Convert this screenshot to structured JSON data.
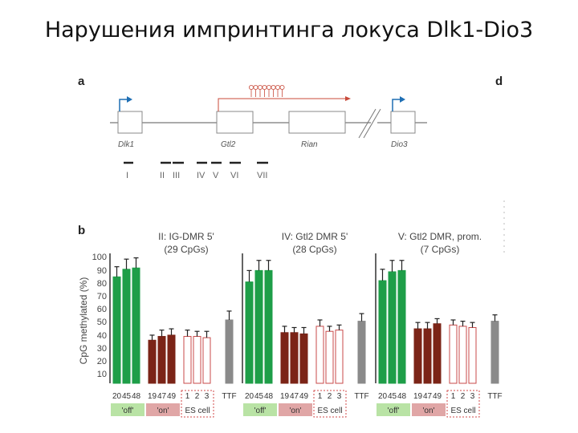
{
  "slide": {
    "title": "Нарушения импринтинга локуса Dlk1-Dio3"
  },
  "panel_a": {
    "letter": "a",
    "letter_d": "d",
    "genes": [
      "Dlk1",
      "Gtl2",
      "Rian",
      "Dio3"
    ],
    "regions": [
      "I",
      "II",
      "III",
      "IV",
      "V",
      "VI",
      "VII"
    ]
  },
  "panel_b": {
    "letter": "b",
    "ylabel": "CpG methylated (%)",
    "yticks": [
      "100",
      "90",
      "80",
      "70",
      "60",
      "50",
      "40",
      "30",
      "20",
      "10"
    ],
    "group_labels": [
      "'off'",
      "'on'",
      "ES cell"
    ],
    "sample_labels": [
      "20",
      "45",
      "48",
      "19",
      "47",
      "49",
      "1",
      "2",
      "3",
      "TTF"
    ]
  },
  "chart_data": [
    {
      "type": "bar",
      "title": "II: IG-DMR 5'",
      "subtitle": "(29 CpGs)",
      "ylabel": "CpG methylated (%)",
      "ylim": [
        0,
        100
      ],
      "categories": [
        "20",
        "45",
        "48",
        "19",
        "47",
        "49",
        "1",
        "2",
        "3",
        "TTF"
      ],
      "groups": [
        "'off'",
        "'on'",
        "ES cell"
      ],
      "values": [
        84,
        90,
        91,
        34,
        37,
        38,
        37,
        37,
        36,
        50
      ],
      "errors": [
        8,
        8,
        8,
        4,
        5,
        5,
        5,
        4,
        5,
        7
      ],
      "colors": [
        "#1e9e48",
        "#1e9e48",
        "#1e9e48",
        "#7b2417",
        "#7b2417",
        "#7b2417",
        "#ffffff",
        "#ffffff",
        "#ffffff",
        "#8a8a8a"
      ]
    },
    {
      "type": "bar",
      "title": "IV: Gtl2 DMR 5'",
      "subtitle": "(28 CpGs)",
      "ylim": [
        0,
        100
      ],
      "categories": [
        "20",
        "45",
        "48",
        "19",
        "47",
        "49",
        "1",
        "2",
        "3",
        "TTF"
      ],
      "values": [
        80,
        89,
        89,
        40,
        40,
        39,
        45,
        41,
        42,
        49
      ],
      "errors": [
        9,
        8,
        8,
        5,
        4,
        5,
        5,
        4,
        4,
        6
      ],
      "colors": [
        "#1e9e48",
        "#1e9e48",
        "#1e9e48",
        "#7b2417",
        "#7b2417",
        "#7b2417",
        "#ffffff",
        "#ffffff",
        "#ffffff",
        "#8a8a8a"
      ]
    },
    {
      "type": "bar",
      "title": "V: Gtl2 DMR, prom.",
      "subtitle": "(7 CpGs)",
      "ylim": [
        0,
        100
      ],
      "categories": [
        "20",
        "45",
        "48",
        "19",
        "47",
        "49",
        "1",
        "2",
        "3",
        "TTF"
      ],
      "values": [
        81,
        88,
        89,
        43,
        43,
        47,
        46,
        45,
        44,
        49
      ],
      "errors": [
        9,
        9,
        8,
        5,
        5,
        4,
        4,
        4,
        4,
        5
      ],
      "colors": [
        "#1e9e48",
        "#1e9e48",
        "#1e9e48",
        "#7b2417",
        "#7b2417",
        "#7b2417",
        "#ffffff",
        "#ffffff",
        "#ffffff",
        "#8a8a8a"
      ]
    }
  ],
  "colors": {
    "off_group_bg": "#b9e3a5",
    "on_group_bg": "#e0a6a6",
    "green": "#1e9e48",
    "maroon": "#7b2417",
    "gray": "#8a8a8a",
    "arrow_red": "#c84a3a",
    "arrow_blue": "#1f6fb4"
  }
}
